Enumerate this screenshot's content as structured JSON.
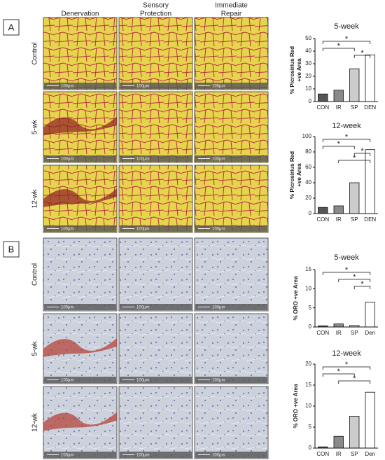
{
  "figure": {
    "panels": [
      "A",
      "B"
    ],
    "columns": [
      [
        "Denervation"
      ],
      [
        "Sensory",
        "Protection"
      ],
      [
        "Immediate",
        "Repair"
      ]
    ],
    "rows": [
      "Control",
      "5-wk",
      "12-wk"
    ],
    "scale_bar": "100μm"
  },
  "chart_data": [
    {
      "type": "bar",
      "title": "5-week",
      "ylabel": [
        "% Picrosirius Red",
        "+ve Area"
      ],
      "categories": [
        "CON",
        "IR",
        "SP",
        "DEN"
      ],
      "values": [
        6,
        9,
        26,
        37
      ],
      "colors": [
        "#555555",
        "#8a8a8a",
        "#cccccc",
        "#ffffff"
      ],
      "ylim": [
        0,
        50
      ],
      "yticks": [
        0,
        10,
        20,
        30,
        40,
        50
      ],
      "annotations": [
        "*",
        "*",
        "*"
      ]
    },
    {
      "type": "bar",
      "title": "12-week",
      "ylabel": [
        "% Picrosirius Red",
        "+ve Area"
      ],
      "categories": [
        "CON",
        "IR",
        "SP",
        "DEN"
      ],
      "values": [
        8,
        10,
        40,
        83
      ],
      "colors": [
        "#555555",
        "#8a8a8a",
        "#cccccc",
        "#ffffff"
      ],
      "ylim": [
        0,
        100
      ],
      "yticks": [
        0,
        20,
        40,
        60,
        80,
        100
      ],
      "annotations": [
        "*",
        "*",
        "*",
        "*"
      ]
    },
    {
      "type": "bar",
      "title": "5-week",
      "ylabel": [
        "% ORO +ve Area"
      ],
      "categories": [
        "CON",
        "IR",
        "SP",
        "Den"
      ],
      "values": [
        0.3,
        0.8,
        0.4,
        6.5
      ],
      "colors": [
        "#555555",
        "#8a8a8a",
        "#cccccc",
        "#ffffff"
      ],
      "ylim": [
        0,
        15
      ],
      "yticks": [
        0,
        5,
        10,
        15
      ],
      "annotations": [
        "*",
        "*",
        "*"
      ]
    },
    {
      "type": "bar",
      "title": "12-week",
      "ylabel": [
        "% ORO +ve Area"
      ],
      "categories": [
        "CON",
        "IR",
        "SP",
        "Den"
      ],
      "values": [
        0.3,
        2.8,
        7.6,
        13.3
      ],
      "colors": [
        "#555555",
        "#8a8a8a",
        "#cccccc",
        "#ffffff"
      ],
      "ylim": [
        0,
        20
      ],
      "yticks": [
        0,
        5,
        10,
        15,
        20
      ],
      "annotations": [
        "*",
        "*",
        "*"
      ]
    }
  ]
}
